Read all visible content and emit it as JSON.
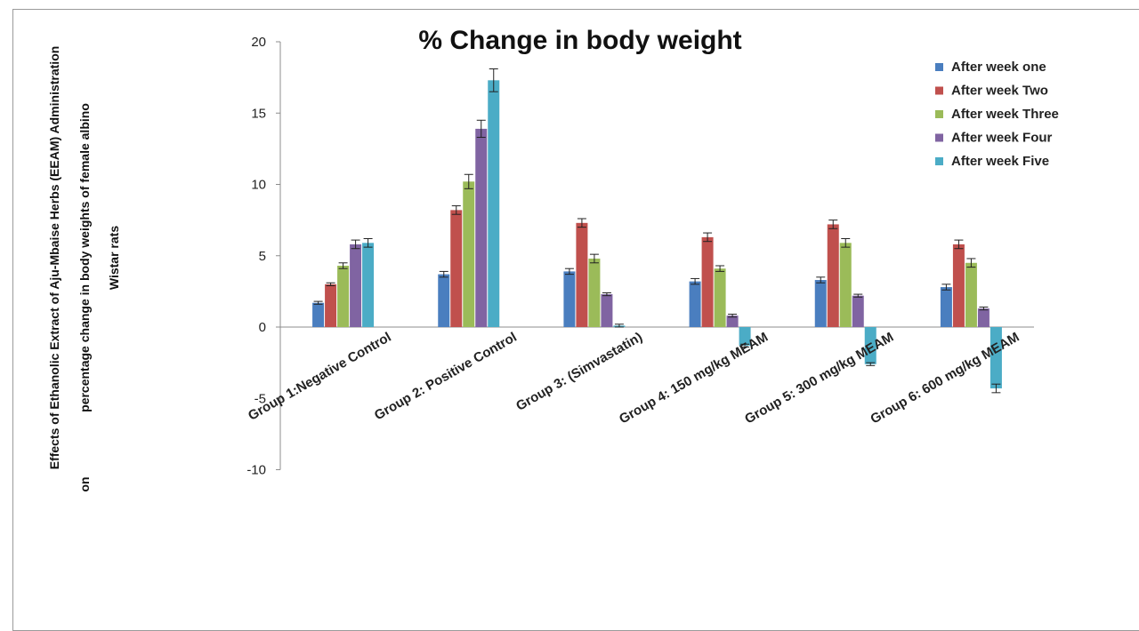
{
  "chart_data": {
    "type": "bar",
    "title": "% Change in body weight",
    "ylabel_lines": [
      "Effects of Ethanolic Extract of Aju-Mbaise Herbs (EEAM) Administration",
      "percentage change in body weights of female albino",
      "Wistar rats"
    ],
    "ylabel_prefix": "on",
    "ylim": [
      -10,
      20
    ],
    "yticks": [
      "20",
      "15",
      "10",
      "5",
      "0",
      "-5",
      "-10"
    ],
    "categories": [
      "Group 1:Negative     Control",
      "Group 2: Positive     Control",
      "Group 3: (Simvastatin)",
      "Group 4: 150 mg/kg MEAM",
      "Group 5: 300 mg/kg MEAM",
      "Group 6: 600 mg/kg MEAM"
    ],
    "series": [
      {
        "name": "After week one",
        "color": "#4a7ebf",
        "values": [
          1.7,
          3.7,
          3.9,
          3.2,
          3.3,
          2.8
        ],
        "errors": [
          0.1,
          0.2,
          0.2,
          0.2,
          0.2,
          0.2
        ]
      },
      {
        "name": "After week Two",
        "color": "#c0504d",
        "values": [
          3.0,
          8.2,
          7.3,
          6.3,
          7.2,
          5.8
        ],
        "errors": [
          0.1,
          0.3,
          0.3,
          0.3,
          0.3,
          0.3
        ]
      },
      {
        "name": "After week Three",
        "color": "#9bbb59",
        "values": [
          4.3,
          10.2,
          4.8,
          4.1,
          5.9,
          4.5
        ],
        "errors": [
          0.2,
          0.5,
          0.3,
          0.2,
          0.3,
          0.3
        ]
      },
      {
        "name": "After week Four",
        "color": "#8064a2",
        "values": [
          5.8,
          13.9,
          2.3,
          0.8,
          2.2,
          1.3
        ],
        "errors": [
          0.3,
          0.6,
          0.1,
          0.1,
          0.1,
          0.1
        ]
      },
      {
        "name": "After week Five",
        "color": "#4bacc6",
        "values": [
          5.9,
          17.3,
          0.1,
          -1.3,
          -2.6,
          -4.3
        ],
        "errors": [
          0.3,
          0.8,
          0.1,
          0.1,
          0.1,
          0.3
        ]
      }
    ],
    "legend_position": "top-right",
    "grid": false,
    "error_bars": true
  }
}
